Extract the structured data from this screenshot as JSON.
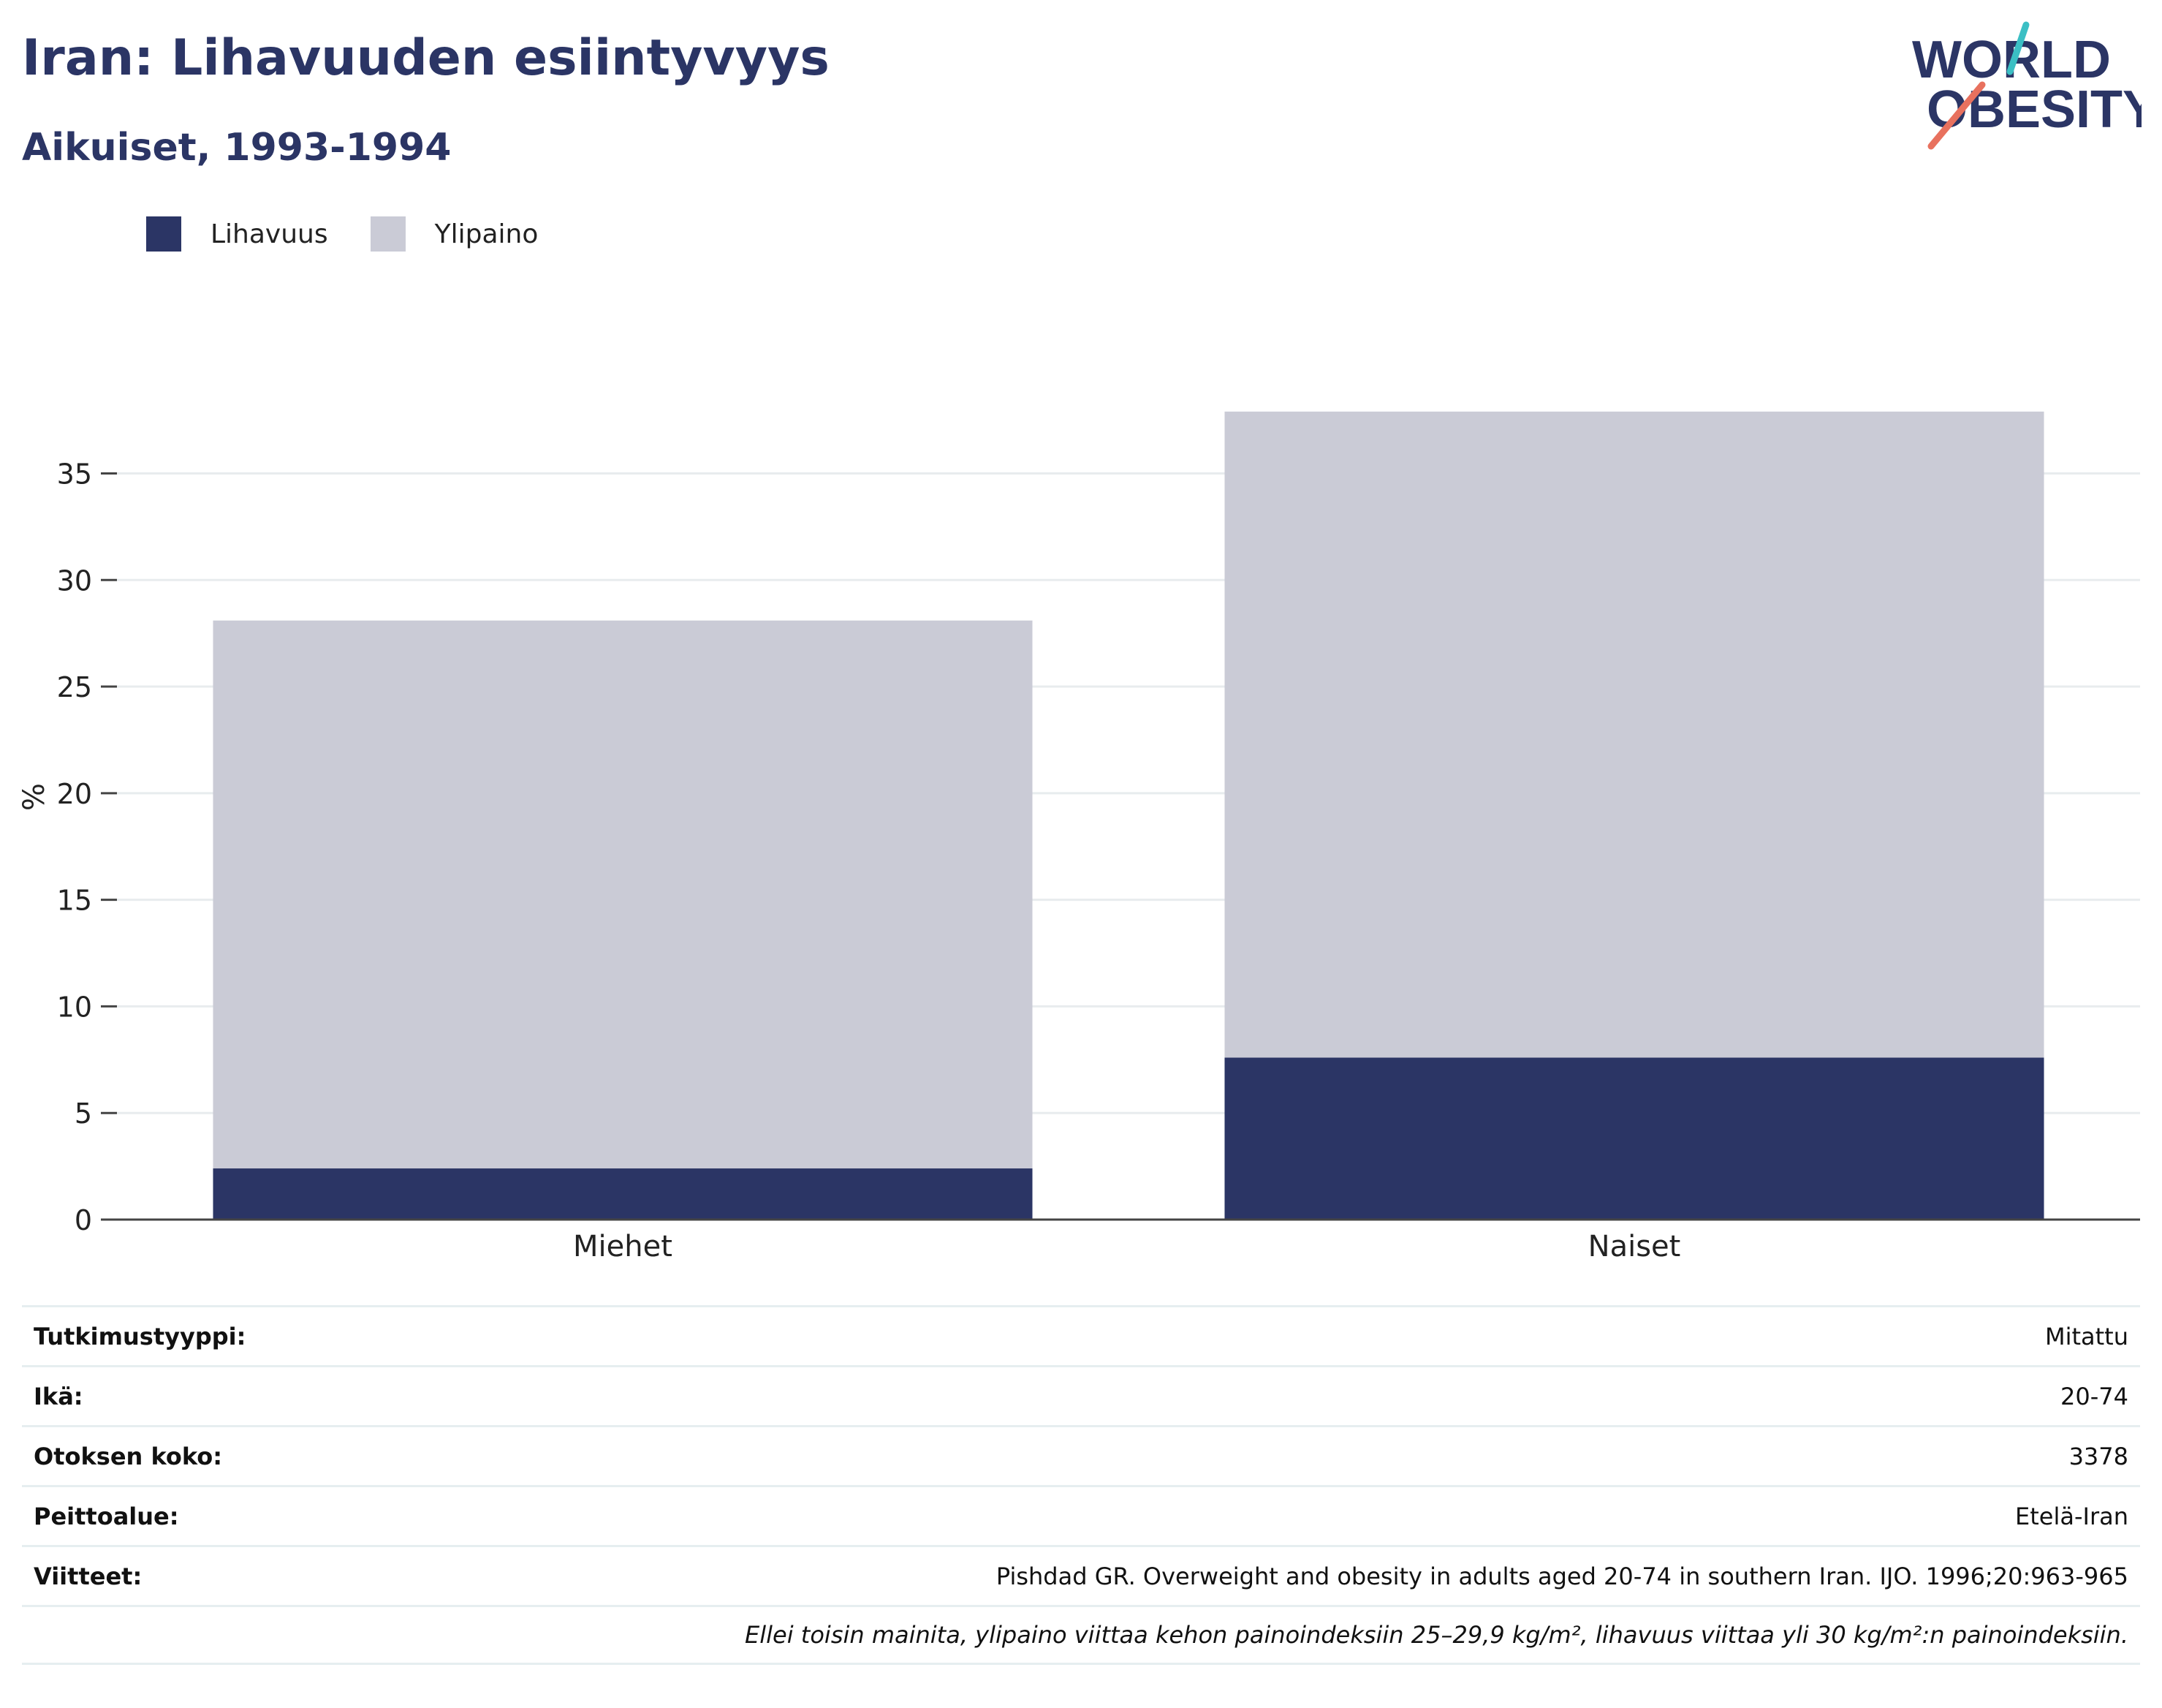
{
  "header": {
    "title": "Iran: Lihavuuden esiintyvyys",
    "subtitle": "Aikuiset, 1993-1994"
  },
  "logo": {
    "line1": "WORLD",
    "line2": "OBESITY"
  },
  "colors": {
    "obesity": "#2b3565",
    "overweight": "#cacbd6",
    "text": "#2b3565",
    "grid": "#e8ecee"
  },
  "chart_data": {
    "type": "bar",
    "stacked": true,
    "categories": [
      "Miehet",
      "Naiset"
    ],
    "series": [
      {
        "name": "Lihavuus",
        "values": [
          2.4,
          7.6
        ],
        "color": "#2b3565"
      },
      {
        "name": "Ylipaino",
        "values": [
          25.7,
          30.3
        ],
        "color": "#cacbd6"
      }
    ],
    "ylabel": "%",
    "xlabel": "",
    "ylim": [
      0,
      38
    ],
    "yticks": [
      0,
      5,
      10,
      15,
      20,
      25,
      30,
      35
    ],
    "legend_position": "top-left",
    "grid": true
  },
  "info": {
    "rows": [
      {
        "label": "Tutkimustyyppi:",
        "value": "Mitattu"
      },
      {
        "label": "Ikä:",
        "value": "20-74"
      },
      {
        "label": "Otoksen koko:",
        "value": "3378"
      },
      {
        "label": "Peittoalue:",
        "value": "Etelä-Iran"
      },
      {
        "label": "Viitteet:",
        "value": "Pishdad GR. Overweight and obesity in adults aged 20-74 in southern Iran. IJO. 1996;20:963-965"
      }
    ],
    "note": "Ellei toisin mainita, ylipaino viittaa kehon painoindeksiin 25–29,9 kg/m², lihavuus viittaa yli 30 kg/m²:n painoindeksiin."
  }
}
